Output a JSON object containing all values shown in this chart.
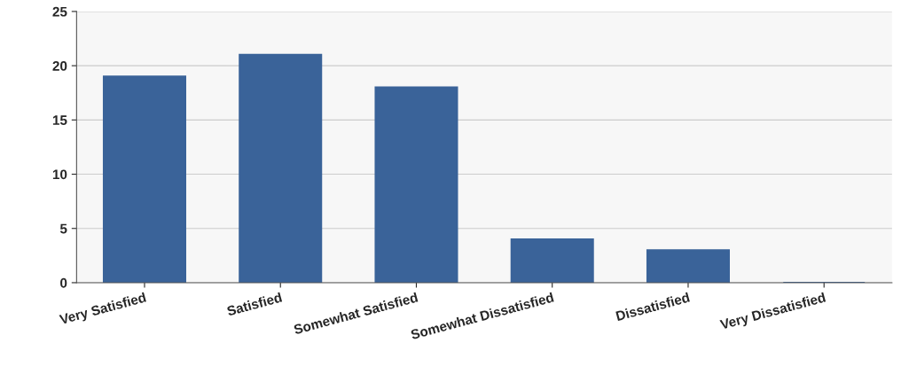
{
  "chart_data": {
    "type": "bar",
    "categories": [
      "Very Satisfied",
      "Satisfied",
      "Somewhat Satisfied",
      "Somewhat Dissatisfied",
      "Dissatisfied",
      "Very Dissatisfied"
    ],
    "values": [
      19,
      21,
      18,
      4,
      3,
      0
    ],
    "color": "#3a6399",
    "ylim": [
      0,
      25
    ],
    "yticks": [
      0,
      5,
      10,
      15,
      20,
      25
    ],
    "grid": "y"
  }
}
